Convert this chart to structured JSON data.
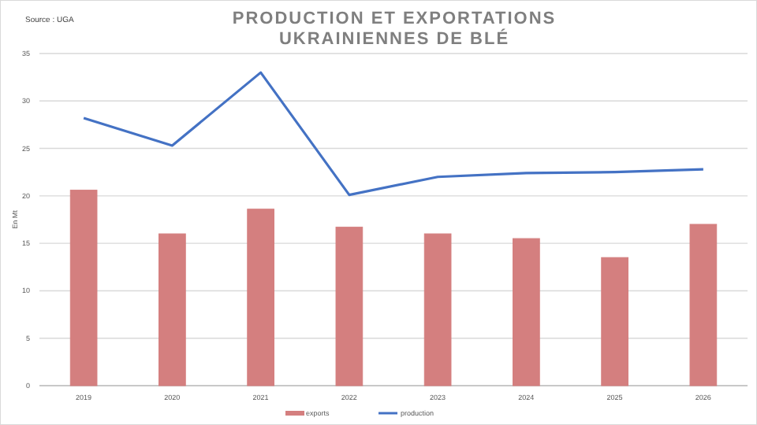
{
  "chart_data": {
    "type": "bar",
    "title": "PRODUCTION ET EXPORTATIONS\nUKRAINIENNES DE BLÉ",
    "ylabel": "En Mt",
    "annotations": [
      "Source : UGA"
    ],
    "categories": [
      "2019",
      "2020",
      "2021",
      "2022",
      "2023",
      "2024",
      "2025",
      "2026"
    ],
    "series": [
      {
        "name": "exports",
        "color": "#d47f7f",
        "values": [
          20.6,
          16.0,
          18.6,
          16.7,
          16.0,
          15.5,
          13.5,
          17.0
        ]
      },
      {
        "name": "production",
        "type": "line",
        "color": "#4472c4",
        "values": [
          28.2,
          25.3,
          33.0,
          20.1,
          22.0,
          22.4,
          22.5,
          22.8
        ]
      }
    ],
    "ylim": [
      0,
      35
    ],
    "yticks": [
      0,
      5,
      10,
      15,
      20,
      25,
      30,
      35
    ],
    "grid": "y",
    "legend": "bottom"
  }
}
